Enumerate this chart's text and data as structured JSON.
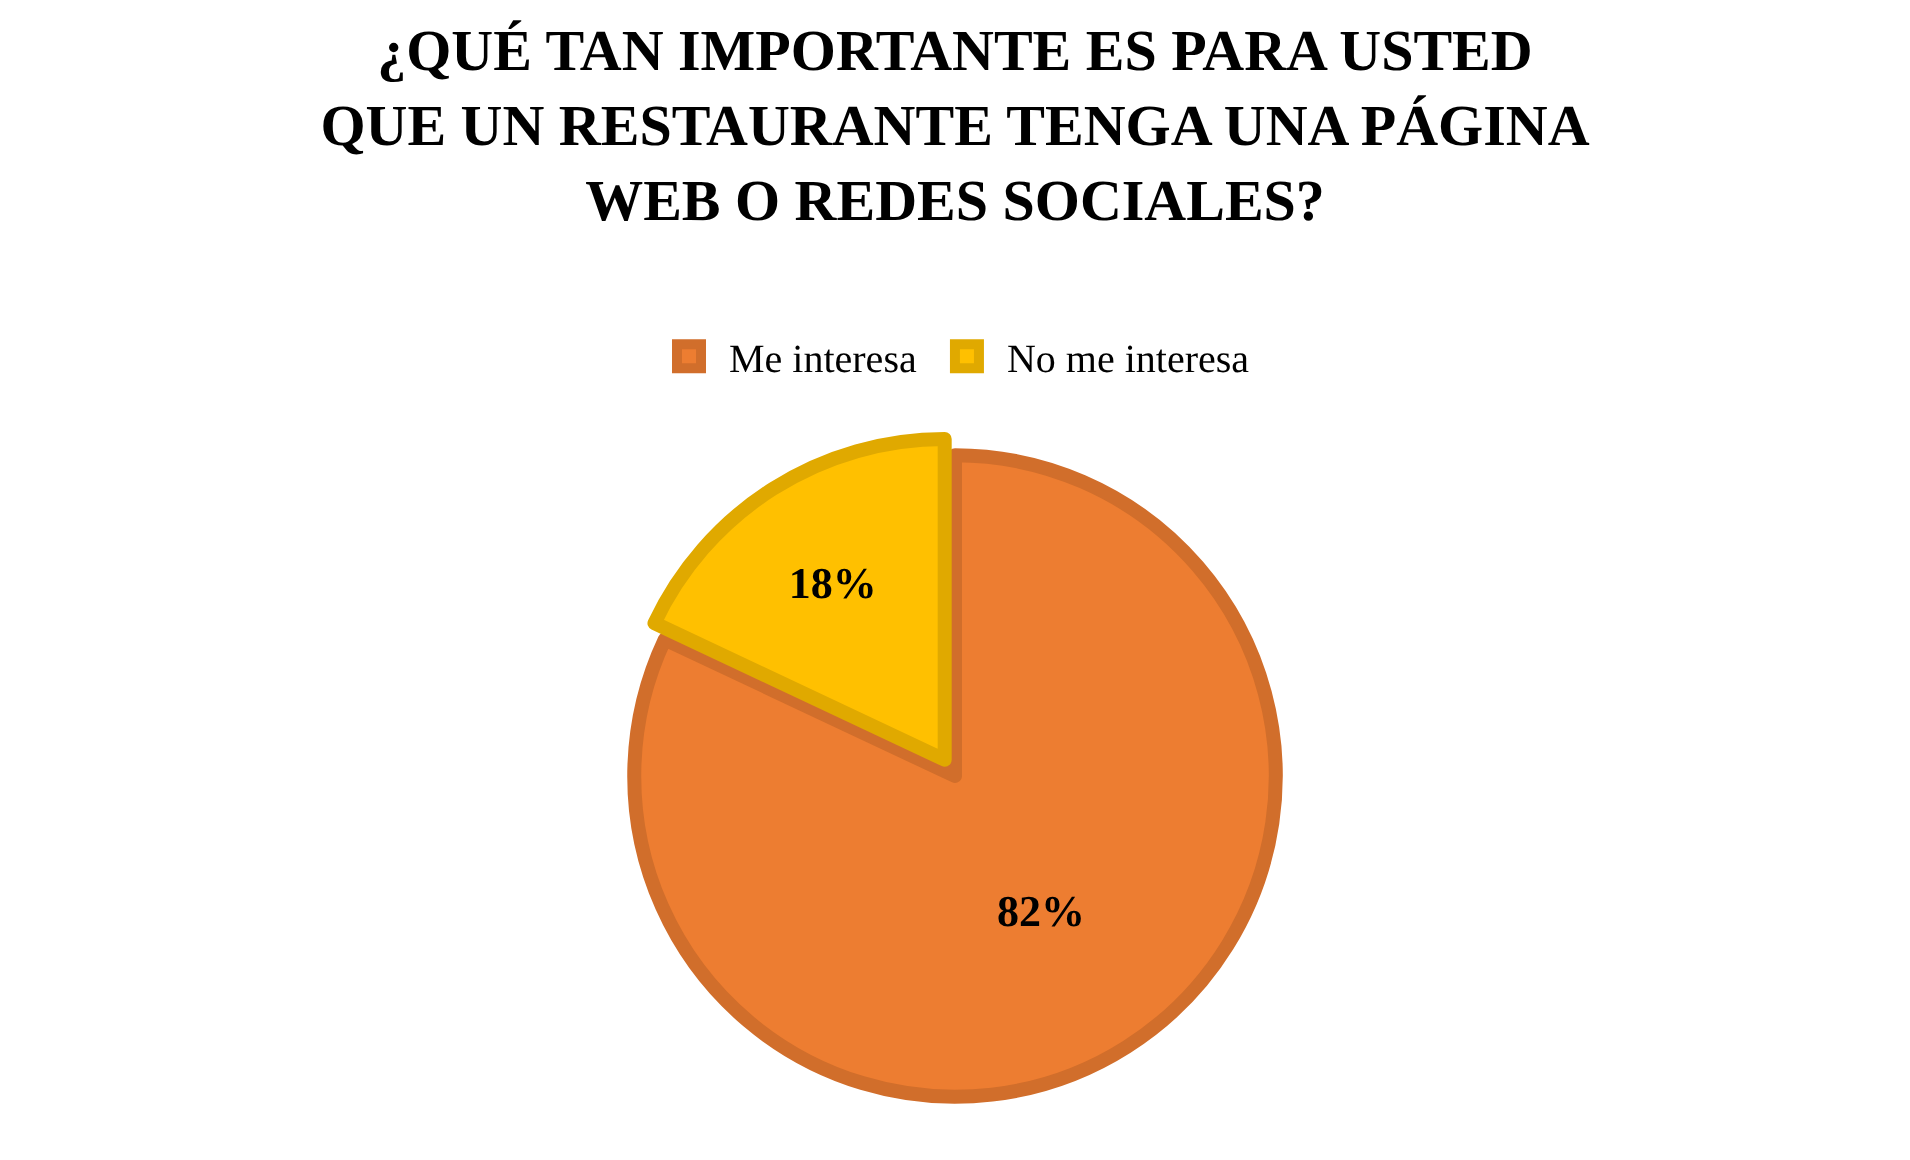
{
  "chart_data": {
    "type": "pie",
    "title": "¿QUÉ TAN IMPORTANTE ES PARA USTED QUE UN RESTAURANTE TENGA UNA PÁGINA WEB O REDES SOCIALES?",
    "categories": [
      "Me interesa",
      "No me interesa"
    ],
    "values": [
      82,
      18
    ],
    "colors": [
      "#ed7d31",
      "#ffc000"
    ],
    "value_labels": [
      "82%",
      "18%"
    ],
    "legend": "top"
  }
}
